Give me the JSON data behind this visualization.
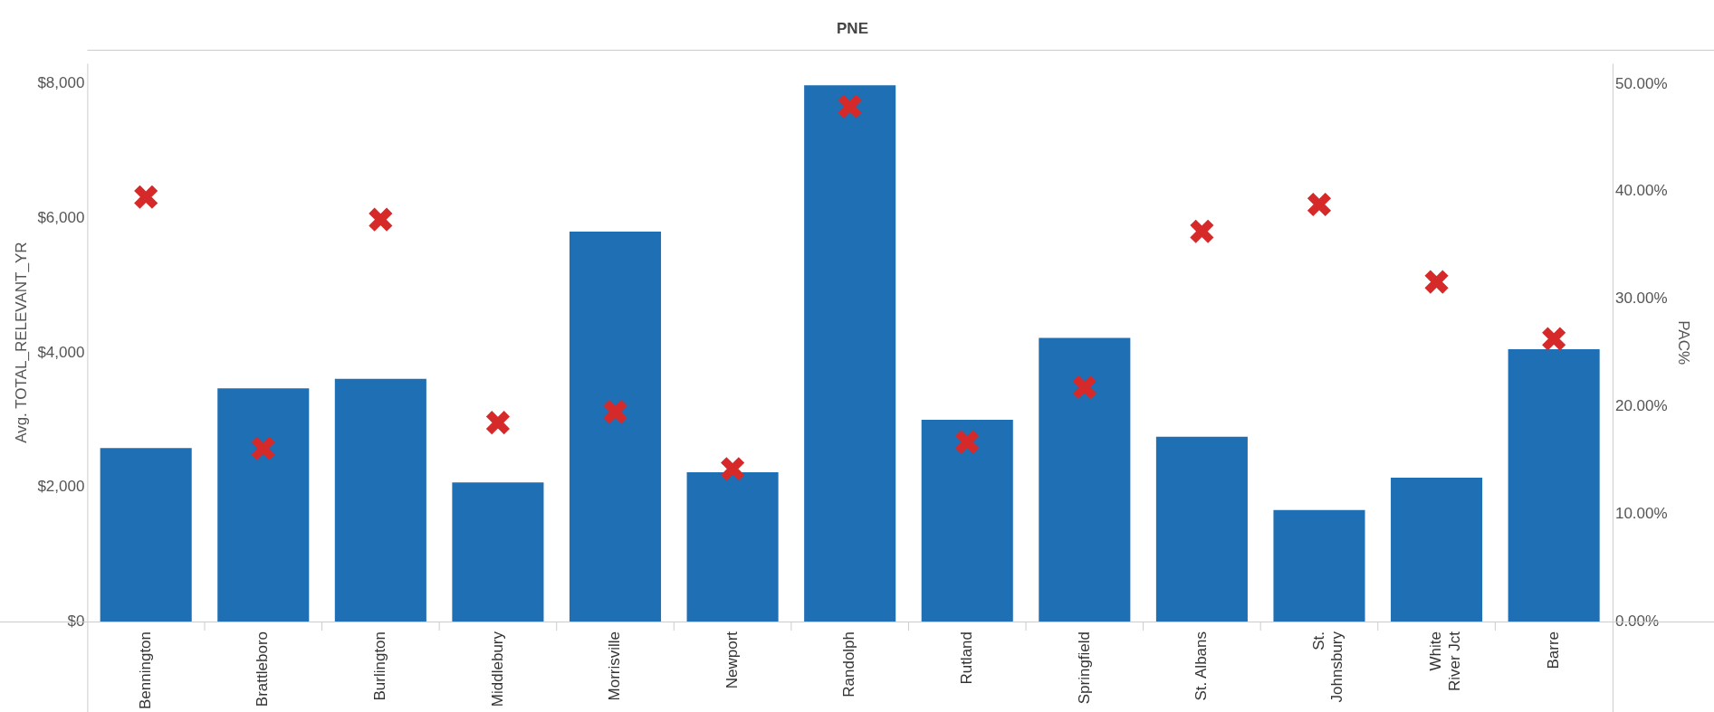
{
  "chart_data": {
    "type": "bar",
    "title": "PNE",
    "ylabel": "Avg. TOTAL_RELEVANT_YR",
    "y2label": "PAC%",
    "categories": [
      "Bennington",
      "Brattleboro",
      "Burlington",
      "Middlebury",
      "Morrisville",
      "Newport",
      "Randolph",
      "Rutland",
      "Springfield",
      "St. Albans",
      "St. Johnsbury",
      "White River Jct",
      "Barre"
    ],
    "series": [
      {
        "type": "bar",
        "color": "#1f6fb4",
        "values": [
          2580,
          3470,
          3610,
          2070,
          5800,
          2220,
          7980,
          3000,
          4220,
          2750,
          1660,
          2140,
          4050
        ]
      },
      {
        "type": "scatter",
        "axis": "y2",
        "color": "#d62a2a",
        "marker": "cross",
        "x": [
          "Bennington",
          "Brattleboro",
          "Burlington",
          "Middlebury",
          "Morrisville",
          "Newport",
          "Randolph",
          "Rutland",
          "Springfield",
          "St. Albans",
          "St. Johnsbury",
          "White River Jct",
          "Barre"
        ],
        "values": [
          39.5,
          16.1,
          37.4,
          18.5,
          19.5,
          14.2,
          47.9,
          16.7,
          21.8,
          36.3,
          38.8,
          31.6,
          26.3
        ]
      }
    ],
    "ylim": [
      0,
      8300
    ],
    "yticks": [
      {
        "value": 0,
        "label": "$0"
      },
      {
        "value": 2000,
        "label": "$2,000"
      },
      {
        "value": 4000,
        "label": "$4,000"
      },
      {
        "value": 6000,
        "label": "$6,000"
      },
      {
        "value": 8000,
        "label": "$8,000"
      }
    ],
    "y2lim": [
      0,
      51.9
    ],
    "y2ticks": [
      {
        "value": 0,
        "label": "0.00%"
      },
      {
        "value": 10,
        "label": "10.00%"
      },
      {
        "value": 20,
        "label": "20.00%"
      },
      {
        "value": 30,
        "label": "30.00%"
      },
      {
        "value": 40,
        "label": "40.00%"
      },
      {
        "value": 50,
        "label": "50.00%"
      }
    ],
    "grid": false,
    "legend": false
  }
}
